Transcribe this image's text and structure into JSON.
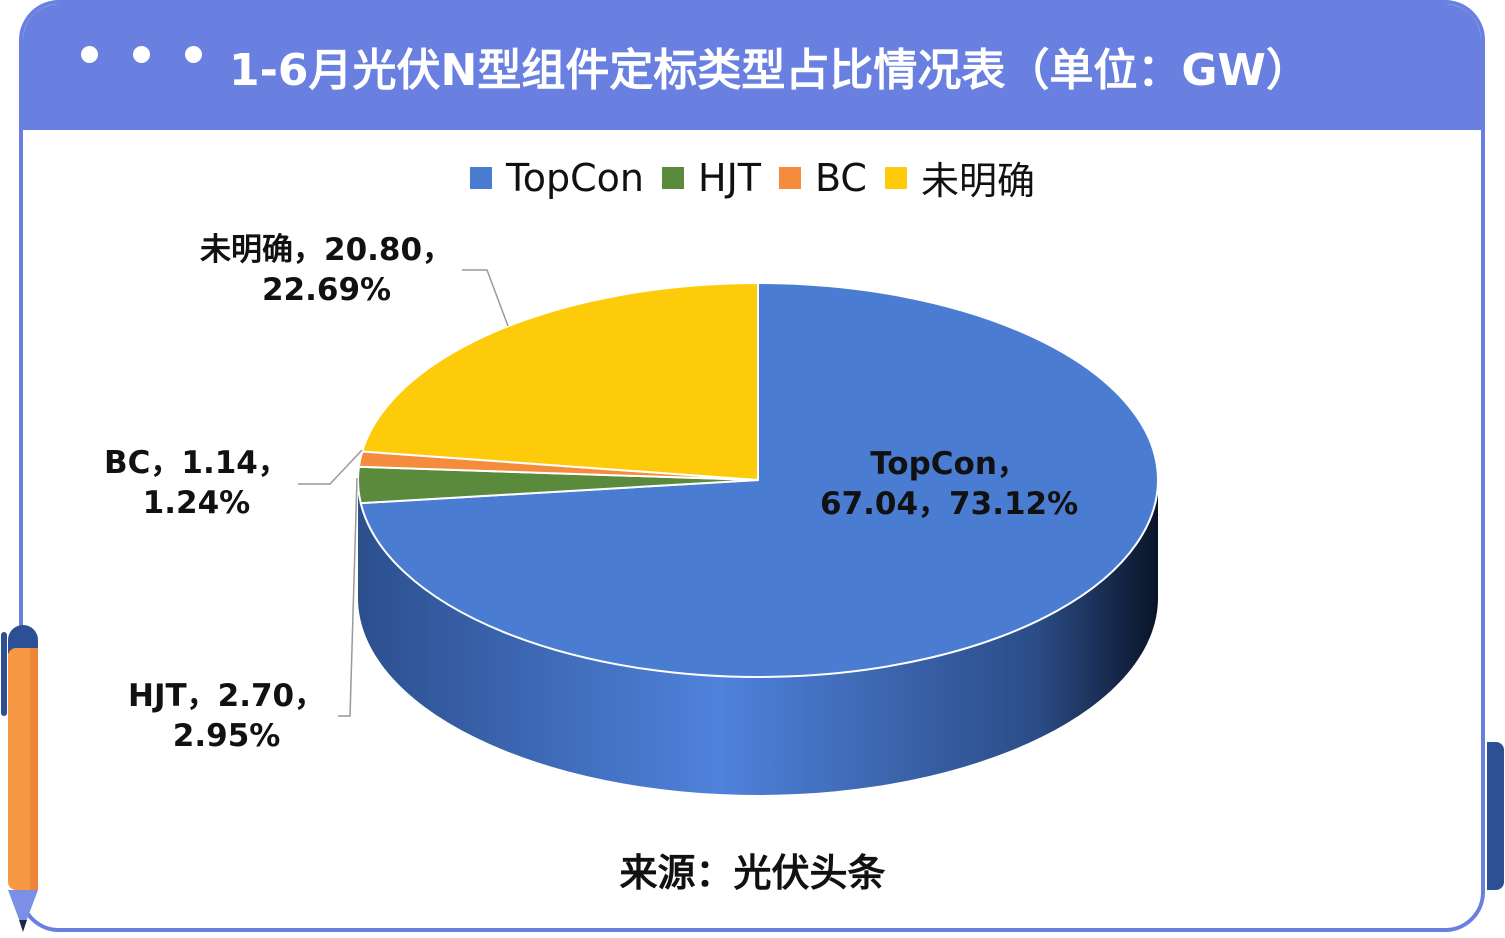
{
  "title": "1-6月光伏N型组件定标类型占比情况表（单位：GW）",
  "source": "来源：光伏头条",
  "colors": {
    "header": "#6a80e0",
    "topcon": "#4a7dd2",
    "hjt": "#5a8a3c",
    "bc": "#f58b3d",
    "unknown": "#fecb0a"
  },
  "chart_data": {
    "type": "pie",
    "title": "1-6月光伏N型组件定标类型占比情况表（单位：GW）",
    "style": "3d",
    "legend_position": "top",
    "categories": [
      "TopCon",
      "HJT",
      "BC",
      "未明确"
    ],
    "values": [
      67.04,
      2.7,
      1.14,
      20.8
    ],
    "percents": [
      73.12,
      2.95,
      1.24,
      22.69
    ],
    "data_labels": [
      {
        "line1": "TopCon，",
        "line2": "67.04，73.12%"
      },
      {
        "line1": "HJT，2.70，",
        "line2": "2.95%"
      },
      {
        "line1": "BC，1.14，",
        "line2": "1.24%"
      },
      {
        "line1": "未明确，20.80，",
        "line2": "22.69%"
      }
    ]
  }
}
